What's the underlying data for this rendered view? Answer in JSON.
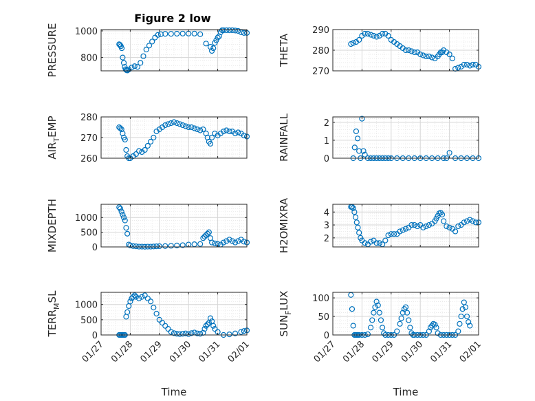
{
  "figure": {
    "title": "Figure 2 low"
  },
  "chart_data": [
    {
      "type": "scatter",
      "title": "Figure 2 low",
      "ylabel": "PRESSURE",
      "ylim": [
        700,
        1010
      ],
      "yticks": [
        "800",
        "1000"
      ],
      "x": [
        0.62,
        0.65,
        0.68,
        0.71,
        0.74,
        0.78,
        0.81,
        0.84,
        0.87,
        0.9,
        0.95,
        1.05,
        1.15,
        1.25,
        1.35,
        1.45,
        1.55,
        1.65,
        1.75,
        1.85,
        1.95,
        2.05,
        2.2,
        2.4,
        2.6,
        2.8,
        3.0,
        3.2,
        3.4,
        3.6,
        3.75,
        3.8,
        3.85,
        3.9,
        3.95,
        4.0,
        4.05,
        4.1,
        4.15,
        4.2,
        4.3,
        4.4,
        4.5,
        4.6,
        4.7,
        4.8,
        4.9,
        5.0
      ],
      "y": [
        900,
        895,
        885,
        870,
        800,
        760,
        730,
        712,
        705,
        703,
        710,
        725,
        735,
        730,
        760,
        810,
        860,
        890,
        920,
        950,
        970,
        975,
        978,
        978,
        979,
        980,
        980,
        980,
        975,
        905,
        880,
        850,
        870,
        910,
        930,
        950,
        960,
        990,
        1005,
        1005,
        1005,
        1005,
        1005,
        1003,
        1000,
        990,
        985,
        985
      ]
    },
    {
      "type": "scatter",
      "ylabel": "THETA",
      "ylim": [
        270,
        290
      ],
      "yticks": [
        "270",
        "280",
        "290"
      ],
      "x": [
        0.62,
        0.7,
        0.8,
        0.9,
        1.0,
        1.1,
        1.2,
        1.3,
        1.4,
        1.5,
        1.6,
        1.7,
        1.8,
        1.9,
        2.0,
        2.1,
        2.2,
        2.3,
        2.4,
        2.5,
        2.6,
        2.7,
        2.8,
        2.9,
        3.0,
        3.1,
        3.2,
        3.3,
        3.4,
        3.5,
        3.6,
        3.65,
        3.7,
        3.75,
        3.8,
        3.9,
        4.0,
        4.1,
        4.2,
        4.3,
        4.4,
        4.5,
        4.6,
        4.7,
        4.8,
        4.9,
        5.0
      ],
      "y": [
        283,
        283.5,
        284,
        285,
        287,
        288,
        288,
        287.5,
        287,
        286.5,
        287,
        288,
        288,
        287,
        285,
        284,
        283,
        282,
        281,
        280,
        280,
        279.5,
        279,
        279,
        278,
        277.5,
        277,
        277,
        276.5,
        276,
        277,
        278,
        279,
        279,
        280,
        279,
        278,
        276,
        271,
        271.5,
        272,
        273,
        273,
        272.5,
        273,
        273,
        272
      ]
    },
    {
      "type": "scatter",
      "ylabel": "AIR_TEMP",
      "ylabel_main": "AIR",
      "ylabel_sub": "T",
      "ylabel_rest": "EMP",
      "ylim": [
        260,
        280
      ],
      "yticks": [
        "260",
        "270",
        "280"
      ],
      "x": [
        0.62,
        0.66,
        0.7,
        0.74,
        0.78,
        0.82,
        0.86,
        0.9,
        0.95,
        1.0,
        1.1,
        1.2,
        1.3,
        1.4,
        1.5,
        1.6,
        1.7,
        1.8,
        1.9,
        2.0,
        2.1,
        2.2,
        2.3,
        2.4,
        2.5,
        2.6,
        2.7,
        2.8,
        2.9,
        3.0,
        3.1,
        3.2,
        3.3,
        3.4,
        3.5,
        3.6,
        3.65,
        3.7,
        3.75,
        3.8,
        3.9,
        4.0,
        4.1,
        4.2,
        4.3,
        4.4,
        4.5,
        4.6,
        4.7,
        4.8,
        4.9,
        5.0
      ],
      "y": [
        275,
        274.5,
        274,
        272,
        270,
        269,
        264,
        261,
        260,
        260,
        261,
        262,
        263.5,
        263,
        264,
        266,
        268,
        270,
        273,
        274,
        275,
        276,
        276.5,
        277,
        277.5,
        277,
        276.5,
        276,
        275.5,
        275,
        275,
        274.5,
        274,
        273.5,
        274,
        272,
        270,
        268,
        267,
        270,
        272,
        271,
        272,
        273,
        273.5,
        273,
        273,
        272,
        272.5,
        272,
        271,
        270.5
      ]
    },
    {
      "type": "scatter",
      "ylabel": "RAINFALL",
      "ylim": [
        0,
        2.3
      ],
      "yticks": [
        "0",
        "1",
        "2"
      ],
      "x": [
        0.7,
        0.75,
        0.8,
        0.85,
        0.9,
        0.95,
        1.0,
        1.05,
        1.1,
        1.2,
        1.3,
        1.4,
        1.5,
        1.6,
        1.7,
        1.8,
        1.9,
        2.0,
        2.2,
        2.4,
        2.6,
        2.8,
        3.0,
        3.2,
        3.4,
        3.6,
        3.8,
        3.9,
        4.0,
        4.2,
        4.4,
        4.6,
        4.8,
        5.0
      ],
      "y": [
        0,
        0.6,
        1.5,
        1.1,
        0.4,
        0,
        2.2,
        0.4,
        0.2,
        0,
        0,
        0,
        0,
        0,
        0,
        0,
        0,
        0,
        0,
        0,
        0,
        0,
        0,
        0,
        0,
        0,
        0,
        0,
        0.3,
        0,
        0,
        0,
        0,
        0
      ]
    },
    {
      "type": "scatter",
      "ylabel": "MIXDEPTH",
      "ylim": [
        0,
        1450
      ],
      "yticks": [
        "0",
        "500",
        "1000"
      ],
      "x": [
        0.62,
        0.66,
        0.7,
        0.74,
        0.78,
        0.82,
        0.86,
        0.9,
        0.95,
        1.0,
        1.1,
        1.2,
        1.3,
        1.4,
        1.5,
        1.6,
        1.7,
        1.8,
        1.9,
        2.0,
        2.2,
        2.4,
        2.6,
        2.8,
        3.0,
        3.2,
        3.4,
        3.5,
        3.55,
        3.6,
        3.65,
        3.7,
        3.75,
        3.8,
        3.9,
        4.0,
        4.1,
        4.2,
        4.3,
        4.4,
        4.5,
        4.6,
        4.7,
        4.8,
        4.9,
        5.0
      ],
      "y": [
        1350,
        1300,
        1200,
        1100,
        1000,
        900,
        650,
        450,
        80,
        50,
        30,
        20,
        10,
        10,
        5,
        10,
        10,
        15,
        20,
        25,
        30,
        40,
        50,
        60,
        80,
        90,
        100,
        300,
        350,
        400,
        450,
        500,
        300,
        150,
        120,
        100,
        80,
        150,
        200,
        250,
        200,
        150,
        200,
        250,
        180,
        150
      ]
    },
    {
      "type": "scatter",
      "ylabel": "H2OMIXRA",
      "ylim": [
        1.3,
        4.6
      ],
      "yticks": [
        "2",
        "3",
        "4"
      ],
      "x": [
        0.62,
        0.66,
        0.7,
        0.74,
        0.78,
        0.82,
        0.86,
        0.9,
        0.95,
        1.0,
        1.1,
        1.2,
        1.3,
        1.4,
        1.5,
        1.6,
        1.7,
        1.8,
        1.9,
        2.0,
        2.1,
        2.2,
        2.3,
        2.4,
        2.5,
        2.6,
        2.7,
        2.8,
        2.9,
        3.0,
        3.1,
        3.2,
        3.3,
        3.4,
        3.5,
        3.55,
        3.6,
        3.65,
        3.7,
        3.75,
        3.8,
        3.9,
        4.0,
        4.1,
        4.2,
        4.3,
        4.4,
        4.5,
        4.6,
        4.7,
        4.8,
        4.9,
        5.0
      ],
      "y": [
        4.4,
        4.4,
        4.3,
        4.0,
        3.6,
        3.2,
        2.8,
        2.4,
        2.0,
        1.8,
        1.6,
        1.5,
        1.7,
        1.8,
        1.6,
        1.6,
        1.5,
        1.8,
        2.2,
        2.3,
        2.3,
        2.3,
        2.5,
        2.6,
        2.7,
        2.8,
        3.0,
        3.0,
        2.9,
        3.0,
        2.8,
        2.9,
        3.0,
        3.1,
        3.3,
        3.5,
        3.7,
        3.9,
        3.95,
        3.8,
        3.3,
        2.9,
        2.8,
        2.7,
        2.5,
        2.9,
        3.0,
        3.2,
        3.3,
        3.4,
        3.3,
        3.2,
        3.2
      ]
    },
    {
      "type": "scatter",
      "ylabel": "TERR_MSL",
      "ylabel_main": "TERR",
      "ylabel_sub": "M",
      "ylabel_rest": "SL",
      "ylim": [
        0,
        1400
      ],
      "yticks": [
        "0",
        "500",
        "1000"
      ],
      "x": [
        0.62,
        0.66,
        0.7,
        0.74,
        0.78,
        0.82,
        0.86,
        0.9,
        0.95,
        1.0,
        1.05,
        1.1,
        1.15,
        1.2,
        1.3,
        1.4,
        1.5,
        1.6,
        1.7,
        1.8,
        1.9,
        2.0,
        2.1,
        2.2,
        2.3,
        2.4,
        2.5,
        2.6,
        2.7,
        2.8,
        2.9,
        3.0,
        3.1,
        3.2,
        3.3,
        3.4,
        3.5,
        3.55,
        3.6,
        3.65,
        3.7,
        3.75,
        3.8,
        3.85,
        3.9,
        4.0,
        4.2,
        4.4,
        4.6,
        4.8,
        4.9,
        5.0
      ],
      "y": [
        0,
        0,
        0,
        0,
        0,
        0,
        600,
        750,
        950,
        1100,
        1200,
        1250,
        1300,
        1250,
        1200,
        1250,
        1300,
        1200,
        1100,
        900,
        700,
        500,
        400,
        300,
        200,
        100,
        60,
        40,
        30,
        40,
        50,
        30,
        60,
        80,
        50,
        40,
        70,
        200,
        300,
        350,
        400,
        550,
        450,
        300,
        200,
        100,
        0,
        20,
        50,
        100,
        130,
        150
      ]
    },
    {
      "type": "scatter",
      "ylabel": "SUN_FLUX",
      "ylabel_main": "SUN",
      "ylabel_sub": "F",
      "ylabel_rest": "LUX",
      "ylim": [
        0,
        115
      ],
      "yticks": [
        "0",
        "50",
        "100"
      ],
      "x": [
        0.62,
        0.66,
        0.7,
        0.74,
        0.78,
        0.82,
        0.86,
        0.9,
        1.0,
        1.1,
        1.2,
        1.3,
        1.35,
        1.4,
        1.45,
        1.5,
        1.55,
        1.6,
        1.65,
        1.7,
        1.75,
        1.8,
        1.9,
        2.0,
        2.1,
        2.2,
        2.3,
        2.35,
        2.4,
        2.45,
        2.5,
        2.55,
        2.6,
        2.65,
        2.7,
        2.75,
        2.8,
        2.9,
        3.0,
        3.1,
        3.2,
        3.3,
        3.35,
        3.4,
        3.45,
        3.5,
        3.55,
        3.6,
        3.7,
        3.8,
        3.9,
        4.0,
        4.1,
        4.2,
        4.3,
        4.35,
        4.4,
        4.45,
        4.5,
        4.55,
        4.6,
        4.65,
        4.7
      ],
      "y": [
        108,
        70,
        25,
        0,
        0,
        0,
        0,
        0,
        0,
        0,
        2,
        20,
        40,
        60,
        75,
        90,
        80,
        60,
        40,
        20,
        5,
        0,
        0,
        0,
        0,
        10,
        30,
        45,
        60,
        70,
        75,
        60,
        40,
        20,
        5,
        0,
        0,
        0,
        0,
        0,
        0,
        10,
        20,
        25,
        30,
        28,
        20,
        5,
        0,
        0,
        0,
        0,
        0,
        0,
        10,
        30,
        50,
        70,
        88,
        75,
        50,
        35,
        25
      ]
    }
  ],
  "x_axis": {
    "ticks": [
      "01/27",
      "01/28",
      "01/29",
      "01/30",
      "01/31",
      "02/01"
    ],
    "xlim": [
      0,
      5
    ],
    "label": "Time"
  },
  "colors": {
    "marker": "#0072BD",
    "axis": "#262626",
    "grid": "#d6d6d6"
  }
}
